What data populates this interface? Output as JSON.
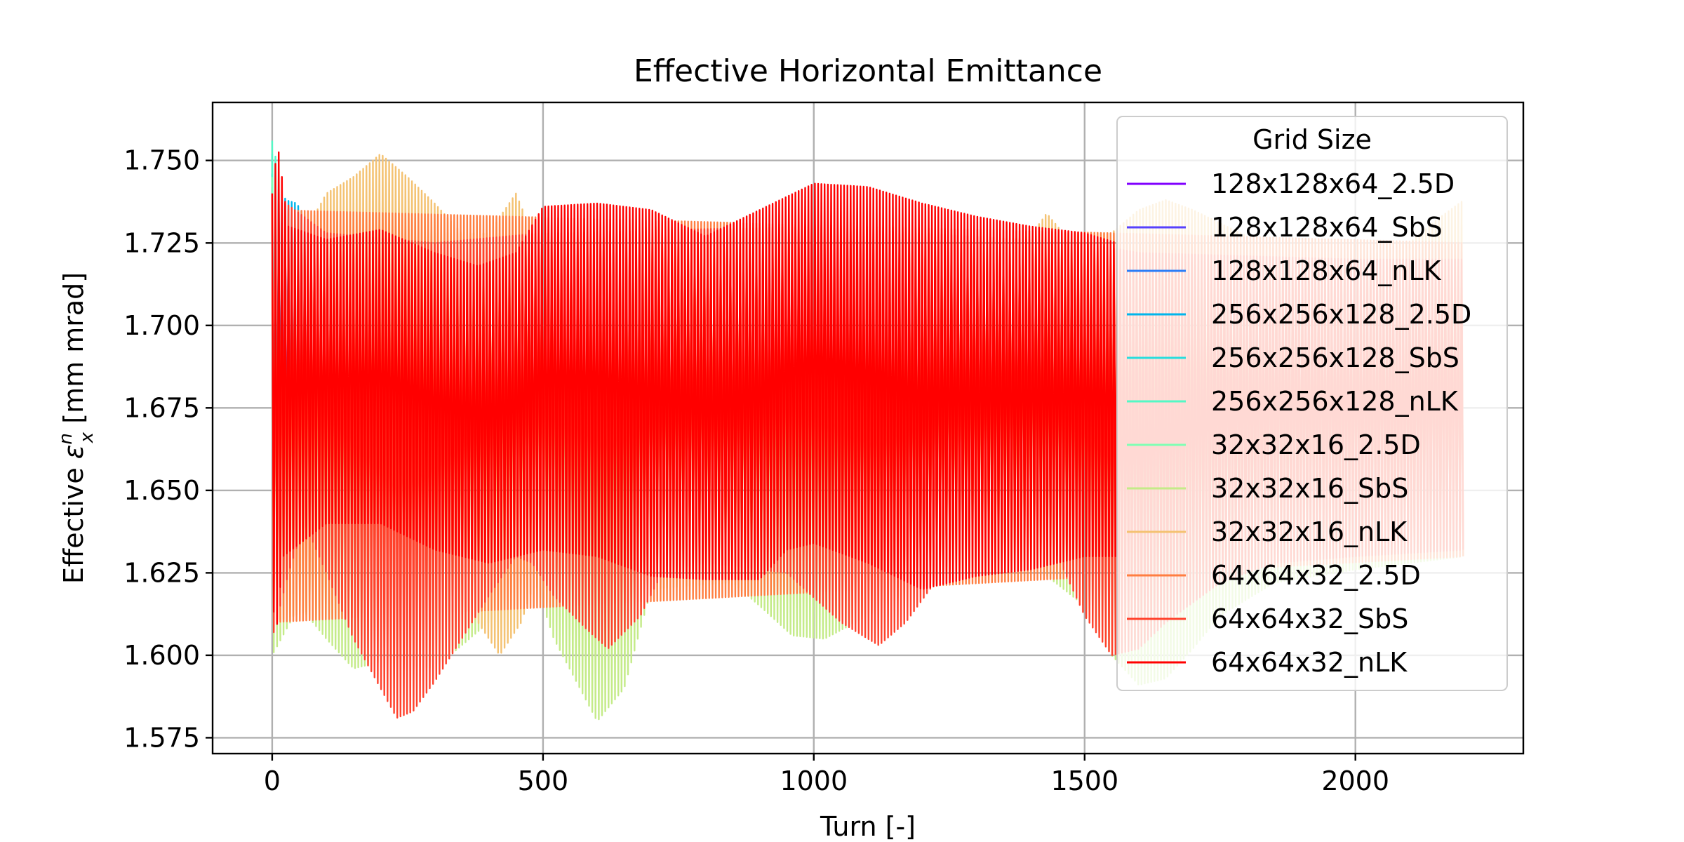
{
  "chart_data": {
    "type": "line",
    "title": "Effective Horizontal Emittance",
    "xlabel": "Turn [-]",
    "ylabel_prefix": "Effective ",
    "ylabel_symbol": "ε",
    "ylabel_sup": "n",
    "ylabel_sub": "x",
    "ylabel_suffix": " [mm mrad]",
    "xlim": [
      -110,
      2310
    ],
    "ylim": [
      1.5702,
      1.7676
    ],
    "xticks": [
      0,
      500,
      1000,
      1500,
      2000
    ],
    "xtick_labels": [
      "0",
      "500",
      "1000",
      "1500",
      "2000"
    ],
    "yticks": [
      1.575,
      1.6,
      1.625,
      1.65,
      1.675,
      1.7,
      1.725,
      1.75
    ],
    "ytick_labels": [
      "1.575",
      "1.600",
      "1.625",
      "1.650",
      "1.675",
      "1.700",
      "1.725",
      "1.750"
    ],
    "grid": true,
    "legend": {
      "title": "Grid Size",
      "placement": "top-right"
    },
    "oscillation_period_turns": 6,
    "series": [
      {
        "name": "128x128x64_2.5D",
        "color": "#8000ff",
        "x_end": 30,
        "upper": [
          [
            0,
            1.735
          ],
          [
            30,
            1.73
          ]
        ],
        "lower": [
          [
            0,
            1.632
          ],
          [
            30,
            1.635
          ]
        ]
      },
      {
        "name": "128x128x64_SbS",
        "color": "#5641fd",
        "x_end": 30,
        "upper": [
          [
            0,
            1.738
          ],
          [
            30,
            1.732
          ]
        ],
        "lower": [
          [
            0,
            1.63
          ],
          [
            30,
            1.634
          ]
        ]
      },
      {
        "name": "128x128x64_nLK",
        "color": "#2c7ef7",
        "x_end": 40,
        "upper": [
          [
            0,
            1.742
          ],
          [
            40,
            1.733
          ]
        ],
        "lower": [
          [
            0,
            1.628
          ],
          [
            40,
            1.632
          ]
        ]
      },
      {
        "name": "256x256x128_2.5D",
        "color": "#00b5eb",
        "x_end": 65,
        "upper": [
          [
            0,
            1.746
          ],
          [
            10,
            1.745
          ],
          [
            25,
            1.738
          ],
          [
            45,
            1.737
          ],
          [
            65,
            1.732
          ]
        ],
        "lower": [
          [
            0,
            1.625
          ],
          [
            10,
            1.613
          ],
          [
            25,
            1.616
          ],
          [
            45,
            1.62
          ],
          [
            65,
            1.624
          ]
        ]
      },
      {
        "name": "256x256x128_SbS",
        "color": "#2adddd",
        "x_end": 15,
        "upper": [
          [
            0,
            1.752
          ],
          [
            15,
            1.745
          ]
        ],
        "lower": [
          [
            0,
            1.62
          ],
          [
            15,
            1.618
          ]
        ]
      },
      {
        "name": "256x256x128_nLK",
        "color": "#54f8c5",
        "x_end": 10,
        "upper": [
          [
            0,
            1.756
          ],
          [
            10,
            1.748
          ]
        ],
        "lower": [
          [
            0,
            1.615
          ],
          [
            10,
            1.62
          ]
        ]
      },
      {
        "name": "32x32x16_2.5D",
        "color": "#80ffb4",
        "x_end": 10,
        "upper": [
          [
            0,
            1.745
          ],
          [
            10,
            1.74
          ]
        ],
        "lower": [
          [
            0,
            1.615
          ],
          [
            10,
            1.62
          ]
        ]
      },
      {
        "name": "32x32x16_SbS",
        "color": "#c4eb88",
        "x_end": 2200,
        "upper": [
          [
            0,
            1.735
          ],
          [
            100,
            1.725
          ],
          [
            300,
            1.728
          ],
          [
            600,
            1.728
          ],
          [
            1000,
            1.72
          ],
          [
            1300,
            1.72
          ],
          [
            1700,
            1.72
          ],
          [
            2000,
            1.72
          ],
          [
            2200,
            1.72
          ]
        ],
        "lower": [
          [
            0,
            1.6
          ],
          [
            50,
            1.615
          ],
          [
            100,
            1.605
          ],
          [
            150,
            1.596
          ],
          [
            200,
            1.598
          ],
          [
            300,
            1.596
          ],
          [
            400,
            1.61
          ],
          [
            480,
            1.625
          ],
          [
            520,
            1.605
          ],
          [
            600,
            1.58
          ],
          [
            650,
            1.59
          ],
          [
            700,
            1.62
          ],
          [
            850,
            1.622
          ],
          [
            900,
            1.615
          ],
          [
            960,
            1.606
          ],
          [
            1020,
            1.605
          ],
          [
            1100,
            1.612
          ],
          [
            1200,
            1.622
          ],
          [
            1300,
            1.63
          ],
          [
            1400,
            1.628
          ],
          [
            1500,
            1.615
          ],
          [
            1550,
            1.6
          ],
          [
            1600,
            1.591
          ],
          [
            1650,
            1.593
          ],
          [
            1700,
            1.602
          ],
          [
            1750,
            1.612
          ],
          [
            1850,
            1.622
          ],
          [
            2000,
            1.626
          ],
          [
            2100,
            1.628
          ],
          [
            2200,
            1.63
          ]
        ]
      },
      {
        "name": "32x32x16_nLK",
        "color": "#f4c272",
        "x_end": 2200,
        "upper": [
          [
            0,
            1.735
          ],
          [
            50,
            1.725
          ],
          [
            100,
            1.74
          ],
          [
            150,
            1.745
          ],
          [
            200,
            1.752
          ],
          [
            250,
            1.745
          ],
          [
            300,
            1.737
          ],
          [
            350,
            1.728
          ],
          [
            400,
            1.728
          ],
          [
            450,
            1.74
          ],
          [
            480,
            1.728
          ],
          [
            500,
            1.724
          ],
          [
            700,
            1.73
          ],
          [
            1000,
            1.728
          ],
          [
            1300,
            1.725
          ],
          [
            1400,
            1.727
          ],
          [
            1430,
            1.734
          ],
          [
            1460,
            1.728
          ],
          [
            1550,
            1.728
          ],
          [
            1600,
            1.735
          ],
          [
            1650,
            1.738
          ],
          [
            1700,
            1.735
          ],
          [
            1800,
            1.727
          ],
          [
            1900,
            1.72
          ],
          [
            2000,
            1.72
          ],
          [
            2100,
            1.725
          ],
          [
            2150,
            1.732
          ],
          [
            2200,
            1.738
          ]
        ],
        "lower": [
          [
            0,
            1.61
          ],
          [
            100,
            1.615
          ],
          [
            300,
            1.626
          ],
          [
            380,
            1.61
          ],
          [
            420,
            1.6
          ],
          [
            460,
            1.61
          ],
          [
            500,
            1.63
          ],
          [
            700,
            1.628
          ],
          [
            1300,
            1.632
          ],
          [
            1500,
            1.634
          ],
          [
            1800,
            1.633
          ],
          [
            2200,
            1.632
          ]
        ]
      },
      {
        "name": "64x64x32_2.5D",
        "color": "#ff7e41",
        "x_end": 2200,
        "upper": [
          [
            0,
            1.735
          ],
          [
            2200,
            1.725
          ]
        ],
        "lower": [
          [
            0,
            1.61
          ],
          [
            2200,
            1.63
          ]
        ]
      },
      {
        "name": "64x64x32_SbS",
        "color": "#ff412c",
        "x_end": 2200,
        "upper": [
          [
            0,
            1.74
          ],
          [
            100,
            1.728
          ],
          [
            300,
            1.725
          ],
          [
            500,
            1.728
          ],
          [
            1000,
            1.73
          ],
          [
            1500,
            1.725
          ],
          [
            1600,
            1.722
          ],
          [
            2000,
            1.72
          ],
          [
            2200,
            1.72
          ]
        ],
        "lower": [
          [
            0,
            1.605
          ],
          [
            30,
            1.625
          ],
          [
            60,
            1.64
          ],
          [
            100,
            1.625
          ],
          [
            150,
            1.605
          ],
          [
            200,
            1.59
          ],
          [
            230,
            1.581
          ],
          [
            260,
            1.583
          ],
          [
            300,
            1.592
          ],
          [
            400,
            1.618
          ],
          [
            450,
            1.63
          ],
          [
            480,
            1.628
          ],
          [
            520,
            1.618
          ],
          [
            580,
            1.608
          ],
          [
            620,
            1.602
          ],
          [
            680,
            1.612
          ],
          [
            720,
            1.625
          ],
          [
            800,
            1.628
          ],
          [
            950,
            1.625
          ],
          [
            1050,
            1.61
          ],
          [
            1120,
            1.603
          ],
          [
            1170,
            1.61
          ],
          [
            1250,
            1.628
          ],
          [
            1350,
            1.64
          ],
          [
            1400,
            1.642
          ],
          [
            1450,
            1.63
          ],
          [
            1500,
            1.612
          ],
          [
            1550,
            1.6
          ],
          [
            1600,
            1.602
          ],
          [
            1650,
            1.61
          ],
          [
            1750,
            1.622
          ],
          [
            1850,
            1.628
          ],
          [
            2000,
            1.63
          ],
          [
            2200,
            1.632
          ]
        ]
      },
      {
        "name": "64x64x32_nLK",
        "color": "#ff0000",
        "x_end": 1560,
        "upper": [
          [
            0,
            1.74
          ],
          [
            10,
            1.755
          ],
          [
            30,
            1.73
          ],
          [
            100,
            1.726
          ],
          [
            200,
            1.729
          ],
          [
            300,
            1.722
          ],
          [
            380,
            1.718
          ],
          [
            450,
            1.722
          ],
          [
            500,
            1.736
          ],
          [
            600,
            1.737
          ],
          [
            700,
            1.735
          ],
          [
            800,
            1.727
          ],
          [
            900,
            1.735
          ],
          [
            1000,
            1.743
          ],
          [
            1100,
            1.742
          ],
          [
            1200,
            1.737
          ],
          [
            1300,
            1.733
          ],
          [
            1400,
            1.73
          ],
          [
            1500,
            1.728
          ],
          [
            1560,
            1.725
          ]
        ],
        "lower": [
          [
            0,
            1.63
          ],
          [
            5,
            1.602
          ],
          [
            20,
            1.63
          ],
          [
            100,
            1.64
          ],
          [
            200,
            1.64
          ],
          [
            300,
            1.632
          ],
          [
            400,
            1.628
          ],
          [
            500,
            1.632
          ],
          [
            600,
            1.63
          ],
          [
            700,
            1.624
          ],
          [
            800,
            1.623
          ],
          [
            900,
            1.623
          ],
          [
            950,
            1.632
          ],
          [
            1000,
            1.634
          ],
          [
            1100,
            1.628
          ],
          [
            1200,
            1.62
          ],
          [
            1300,
            1.624
          ],
          [
            1400,
            1.626
          ],
          [
            1500,
            1.63
          ],
          [
            1560,
            1.63
          ]
        ]
      }
    ]
  }
}
